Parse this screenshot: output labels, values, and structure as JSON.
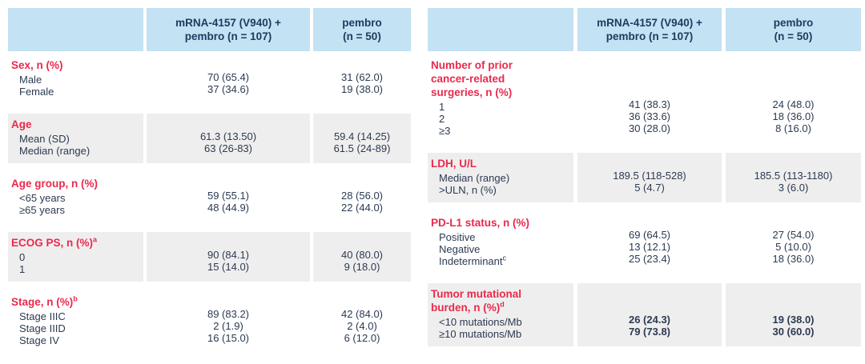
{
  "colors": {
    "header_bg": "#c3e2f3",
    "header_text": "#1e3a5f",
    "accent_red": "#e92a4d",
    "body_text": "#2b3a52",
    "shaded_bg": "#efeeee",
    "page_bg": "#ffffff"
  },
  "tables": [
    {
      "name": "baseline-demographics-table",
      "columns": [
        "",
        "mRNA-4157 (V940) +\npembro (n = 107)",
        "pembro\n(n = 50)"
      ],
      "sections": [
        {
          "title": "Sex, n (%)",
          "sup": "",
          "shaded": false,
          "bold": false,
          "rows": [
            {
              "label": "Male",
              "sup": ""
            },
            {
              "label": "Female",
              "sup": ""
            }
          ],
          "values": [
            [
              "70 (65.4)",
              "37 (34.6)"
            ],
            [
              "31 (62.0)",
              "19 (38.0)"
            ]
          ]
        },
        {
          "title": "Age",
          "sup": "",
          "shaded": true,
          "bold": false,
          "rows": [
            {
              "label": "Mean (SD)",
              "sup": ""
            },
            {
              "label": "Median (range)",
              "sup": ""
            }
          ],
          "values": [
            [
              "61.3 (13.50)",
              "63 (26-83)"
            ],
            [
              "59.4 (14.25)",
              "61.5 (24-89)"
            ]
          ]
        },
        {
          "title": "Age group, n (%)",
          "sup": "",
          "shaded": false,
          "bold": false,
          "rows": [
            {
              "label": "<65 years",
              "sup": ""
            },
            {
              "label": "≥65 years",
              "sup": ""
            }
          ],
          "values": [
            [
              "59 (55.1)",
              "48 (44.9)"
            ],
            [
              "28 (56.0)",
              "22 (44.0)"
            ]
          ]
        },
        {
          "title": "ECOG PS, n (%)",
          "sup": "a",
          "shaded": true,
          "bold": false,
          "rows": [
            {
              "label": "0",
              "sup": ""
            },
            {
              "label": "1",
              "sup": ""
            }
          ],
          "values": [
            [
              "90 (84.1)",
              "15 (14.0)"
            ],
            [
              "40 (80.0)",
              "9 (18.0)"
            ]
          ]
        },
        {
          "title": "Stage, n (%)",
          "sup": "b",
          "shaded": false,
          "bold": false,
          "rows": [
            {
              "label": "Stage IIIC",
              "sup": ""
            },
            {
              "label": "Stage IIID",
              "sup": ""
            },
            {
              "label": "Stage IV",
              "sup": ""
            }
          ],
          "values": [
            [
              "89 (83.2)",
              "2 (1.9)",
              "16 (15.0)"
            ],
            [
              "42 (84.0)",
              "2 (4.0)",
              "6 (12.0)"
            ]
          ]
        }
      ]
    },
    {
      "name": "baseline-disease-characteristics-table",
      "columns": [
        "",
        "mRNA-4157 (V940) +\npembro (n = 107)",
        "pembro\n(n = 50)"
      ],
      "sections": [
        {
          "title": "Number of prior\ncancer-related\nsurgeries, n (%)",
          "sup": "",
          "shaded": false,
          "bold": false,
          "rows": [
            {
              "label": "1",
              "sup": ""
            },
            {
              "label": "2",
              "sup": ""
            },
            {
              "label": "≥3",
              "sup": ""
            }
          ],
          "values": [
            [
              "41 (38.3)",
              "36 (33.6)",
              "30 (28.0)"
            ],
            [
              "24 (48.0)",
              "18 (36.0)",
              "8 (16.0)"
            ]
          ]
        },
        {
          "title": "LDH, U/L",
          "sup": "",
          "shaded": true,
          "bold": false,
          "rows": [
            {
              "label": "Median (range)",
              "sup": ""
            },
            {
              "label": ">ULN, n (%)",
              "sup": ""
            }
          ],
          "values": [
            [
              "189.5 (118-528)",
              "5 (4.7)"
            ],
            [
              "185.5 (113-1180)",
              "3 (6.0)"
            ]
          ]
        },
        {
          "title": "PD-L1 status, n (%)",
          "sup": "",
          "shaded": false,
          "bold": false,
          "rows": [
            {
              "label": "Positive",
              "sup": ""
            },
            {
              "label": "Negative",
              "sup": ""
            },
            {
              "label": "Indeterminant",
              "sup": "c"
            }
          ],
          "values": [
            [
              "69 (64.5)",
              "13 (12.1)",
              "25 (23.4)"
            ],
            [
              "27 (54.0)",
              "5 (10.0)",
              "18 (36.0)"
            ]
          ]
        },
        {
          "title": "Tumor mutational\nburden, n (%)",
          "sup": "d",
          "shaded": true,
          "bold": true,
          "rows": [
            {
              "label": "<10 mutations/Mb",
              "sup": ""
            },
            {
              "label": "≥10 mutations/Mb",
              "sup": ""
            }
          ],
          "values": [
            [
              "26 (24.3)",
              "79 (73.8)"
            ],
            [
              "19 (38.0)",
              "30 (60.0)"
            ]
          ]
        }
      ]
    }
  ]
}
